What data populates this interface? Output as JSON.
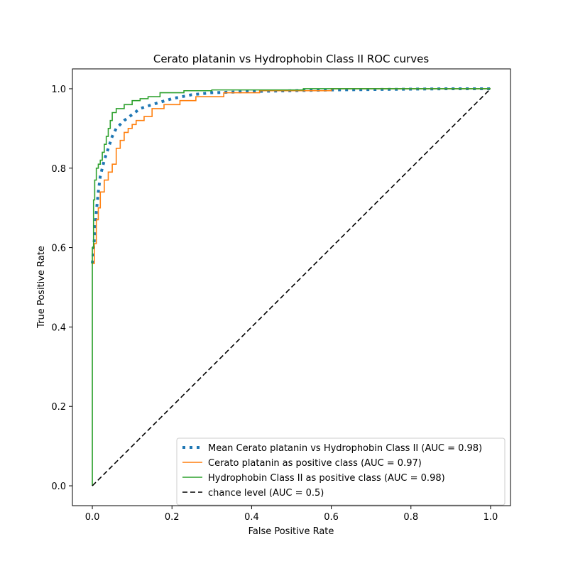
{
  "chart_data": {
    "type": "line",
    "title": "Cerato platanin vs Hydrophobin Class II ROC curves",
    "xlabel": "False Positive Rate",
    "ylabel": "True Positive Rate",
    "xlim": [
      -0.05,
      1.05
    ],
    "ylim": [
      -0.05,
      1.05
    ],
    "xticks": [
      0.0,
      0.2,
      0.4,
      0.6,
      0.8,
      1.0
    ],
    "yticks": [
      0.0,
      0.2,
      0.4,
      0.6,
      0.8,
      1.0
    ],
    "xtick_labels": [
      "0.0",
      "0.2",
      "0.4",
      "0.6",
      "0.8",
      "1.0"
    ],
    "ytick_labels": [
      "0.0",
      "0.2",
      "0.4",
      "0.6",
      "0.8",
      "1.0"
    ],
    "grid": false,
    "legend_position": "lower-right",
    "series": [
      {
        "name": "Mean Cerato platanin vs Hydrophobin Class II (AUC = 0.98)",
        "style": "dotted",
        "color": "#1f77b4",
        "x": [
          0.0,
          0.005,
          0.01,
          0.015,
          0.02,
          0.03,
          0.04,
          0.05,
          0.06,
          0.08,
          0.1,
          0.12,
          0.15,
          0.2,
          0.25,
          0.3,
          0.4,
          0.5,
          0.6,
          0.7,
          0.8,
          0.9,
          1.0
        ],
        "y": [
          0.56,
          0.62,
          0.69,
          0.74,
          0.78,
          0.82,
          0.85,
          0.88,
          0.9,
          0.92,
          0.935,
          0.95,
          0.96,
          0.975,
          0.985,
          0.99,
          0.993,
          0.995,
          0.997,
          0.998,
          0.999,
          1.0,
          1.0
        ]
      },
      {
        "name": "Cerato platanin as positive class (AUC = 0.97)",
        "style": "solid",
        "color": "#ff7f0e",
        "x": [
          0.0,
          0.005,
          0.005,
          0.01,
          0.01,
          0.015,
          0.015,
          0.02,
          0.02,
          0.03,
          0.03,
          0.04,
          0.04,
          0.05,
          0.05,
          0.06,
          0.06,
          0.07,
          0.07,
          0.08,
          0.08,
          0.09,
          0.09,
          0.1,
          0.1,
          0.11,
          0.11,
          0.13,
          0.13,
          0.15,
          0.15,
          0.18,
          0.18,
          0.22,
          0.22,
          0.26,
          0.26,
          0.33,
          0.33,
          0.42,
          0.42,
          0.6,
          0.6,
          1.0
        ],
        "y": [
          0.56,
          0.56,
          0.61,
          0.61,
          0.67,
          0.67,
          0.7,
          0.7,
          0.74,
          0.74,
          0.77,
          0.77,
          0.79,
          0.79,
          0.81,
          0.81,
          0.85,
          0.85,
          0.87,
          0.87,
          0.89,
          0.89,
          0.9,
          0.9,
          0.91,
          0.91,
          0.92,
          0.92,
          0.93,
          0.93,
          0.95,
          0.95,
          0.96,
          0.96,
          0.97,
          0.97,
          0.98,
          0.98,
          0.99,
          0.99,
          0.995,
          0.995,
          1.0,
          1.0
        ]
      },
      {
        "name": "Hydrophobin Class II as positive class (AUC = 0.98)",
        "style": "solid",
        "color": "#2ca02c",
        "x": [
          0.0,
          0.0,
          0.003,
          0.003,
          0.006,
          0.006,
          0.01,
          0.01,
          0.015,
          0.015,
          0.02,
          0.02,
          0.025,
          0.025,
          0.03,
          0.03,
          0.035,
          0.035,
          0.04,
          0.04,
          0.045,
          0.045,
          0.05,
          0.05,
          0.06,
          0.06,
          0.08,
          0.08,
          0.1,
          0.1,
          0.12,
          0.12,
          0.14,
          0.14,
          0.17,
          0.17,
          0.23,
          0.23,
          0.3,
          0.3,
          0.53,
          0.53,
          1.0
        ],
        "y": [
          0.0,
          0.6,
          0.6,
          0.72,
          0.72,
          0.77,
          0.77,
          0.8,
          0.8,
          0.81,
          0.81,
          0.82,
          0.82,
          0.84,
          0.84,
          0.86,
          0.86,
          0.88,
          0.88,
          0.9,
          0.9,
          0.92,
          0.92,
          0.94,
          0.94,
          0.95,
          0.95,
          0.96,
          0.96,
          0.97,
          0.97,
          0.975,
          0.975,
          0.98,
          0.98,
          0.99,
          0.99,
          0.995,
          0.995,
          0.997,
          0.997,
          1.0,
          1.0
        ]
      },
      {
        "name": "chance level (AUC = 0.5)",
        "style": "dashed",
        "color": "#000000",
        "x": [
          0.0,
          1.0
        ],
        "y": [
          0.0,
          1.0
        ]
      }
    ]
  }
}
